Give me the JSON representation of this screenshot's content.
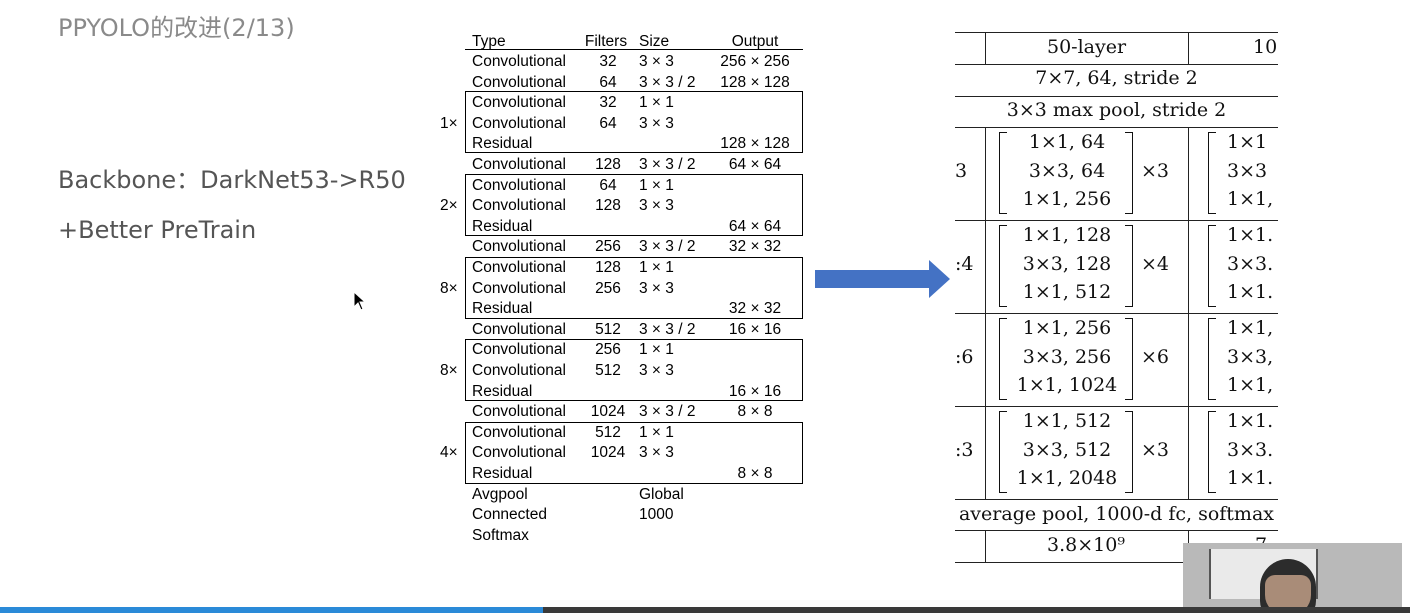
{
  "slide": {
    "title": "PPYOLO的改进(2/13)",
    "lines": [
      "Backbone：DarkNet53->R50",
      "+Better PreTrain"
    ]
  },
  "darknet_table": {
    "headers": {
      "type": "Type",
      "filters": "Filters",
      "size": "Size",
      "output": "Output"
    },
    "rows": [
      {
        "mult": "",
        "type": "Convolutional",
        "filters": "32",
        "size": "3 × 3",
        "output": "256 × 256"
      },
      {
        "mult": "",
        "type": "Convolutional",
        "filters": "64",
        "size": "3 × 3 / 2",
        "output": "128 × 128"
      },
      {
        "mult": "",
        "type": "Convolutional",
        "filters": "32",
        "size": "1 × 1",
        "output": ""
      },
      {
        "mult": "1×",
        "type": "Convolutional",
        "filters": "64",
        "size": "3 × 3",
        "output": ""
      },
      {
        "mult": "",
        "type": "Residual",
        "filters": "",
        "size": "",
        "output": "128 × 128"
      },
      {
        "mult": "",
        "type": "Convolutional",
        "filters": "128",
        "size": "3 × 3 / 2",
        "output": "64 × 64"
      },
      {
        "mult": "",
        "type": "Convolutional",
        "filters": "64",
        "size": "1 × 1",
        "output": ""
      },
      {
        "mult": "2×",
        "type": "Convolutional",
        "filters": "128",
        "size": "3 × 3",
        "output": ""
      },
      {
        "mult": "",
        "type": "Residual",
        "filters": "",
        "size": "",
        "output": "64 × 64"
      },
      {
        "mult": "",
        "type": "Convolutional",
        "filters": "256",
        "size": "3 × 3 / 2",
        "output": "32 × 32"
      },
      {
        "mult": "",
        "type": "Convolutional",
        "filters": "128",
        "size": "1 × 1",
        "output": ""
      },
      {
        "mult": "8×",
        "type": "Convolutional",
        "filters": "256",
        "size": "3 × 3",
        "output": ""
      },
      {
        "mult": "",
        "type": "Residual",
        "filters": "",
        "size": "",
        "output": "32 × 32"
      },
      {
        "mult": "",
        "type": "Convolutional",
        "filters": "512",
        "size": "3 × 3 / 2",
        "output": "16 × 16"
      },
      {
        "mult": "",
        "type": "Convolutional",
        "filters": "256",
        "size": "1 × 1",
        "output": ""
      },
      {
        "mult": "8×",
        "type": "Convolutional",
        "filters": "512",
        "size": "3 × 3",
        "output": ""
      },
      {
        "mult": "",
        "type": "Residual",
        "filters": "",
        "size": "",
        "output": "16 × 16"
      },
      {
        "mult": "",
        "type": "Convolutional",
        "filters": "1024",
        "size": "3 × 3 / 2",
        "output": "8 × 8"
      },
      {
        "mult": "",
        "type": "Convolutional",
        "filters": "512",
        "size": "1 × 1",
        "output": ""
      },
      {
        "mult": "4×",
        "type": "Convolutional",
        "filters": "1024",
        "size": "3 × 3",
        "output": ""
      },
      {
        "mult": "",
        "type": "Residual",
        "filters": "",
        "size": "",
        "output": "8 × 8"
      },
      {
        "mult": "",
        "type": "Avgpool",
        "filters": "",
        "size": "Global",
        "output": ""
      },
      {
        "mult": "",
        "type": "Connected",
        "filters": "",
        "size": "1000",
        "output": ""
      },
      {
        "mult": "",
        "type": "Softmax",
        "filters": "",
        "size": "",
        "output": ""
      }
    ]
  },
  "resnet_table": {
    "header_50": "50-layer",
    "header_next": "10",
    "conv1": "7×7, 64, stride 2",
    "pool": "3×3 max pool, stride 2",
    "stages": [
      {
        "edge": "3",
        "lines": [
          "1×1, 64",
          "3×3, 64",
          "1×1, 256"
        ],
        "mult": "×3",
        "right": [
          "1×1",
          "3×3",
          "1×1,"
        ]
      },
      {
        "edge": ":4",
        "lines": [
          "1×1, 128",
          "3×3, 128",
          "1×1, 512"
        ],
        "mult": "×4",
        "right": [
          "1×1.",
          "3×3.",
          "1×1."
        ]
      },
      {
        "edge": ":6",
        "lines": [
          "1×1, 256",
          "3×3, 256",
          "1×1, 1024"
        ],
        "mult": "×6",
        "right": [
          "1×1,",
          "3×3,",
          "1×1,"
        ]
      },
      {
        "edge": ":3",
        "lines": [
          "1×1, 512",
          "3×3, 512",
          "1×1, 2048"
        ],
        "mult": "×3",
        "right": [
          "1×1.",
          "3×3.",
          "1×1."
        ]
      }
    ],
    "footer": "average pool, 1000-d fc, softmax",
    "flops": "3.8×10⁹",
    "flops_next": "7."
  },
  "colors": {
    "arrow": "#4472c4",
    "progress": "#2a8ad8"
  },
  "progress": {
    "fraction": 0.385
  }
}
